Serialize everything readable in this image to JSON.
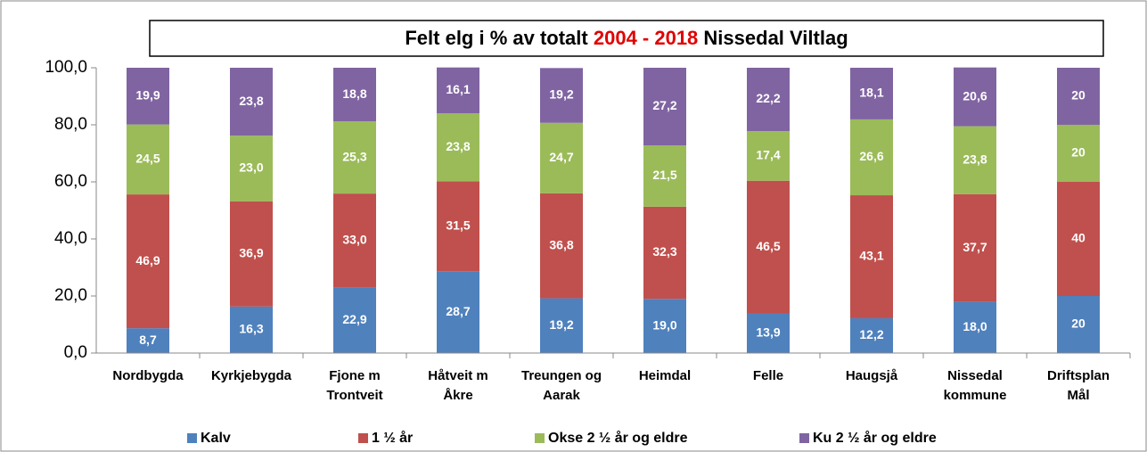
{
  "chart_data": {
    "type": "stacked_bar",
    "title": [
      "Felt elg i % av totalt",
      "2004 - 2018",
      "Nissedal Viltlag"
    ],
    "categories": [
      "Nordbygda",
      "Kyrkjebygda",
      "Fjone m\nTrontveit",
      "Håtveit m\nÅkre",
      "Treungen og\nAarak",
      "Heimdal",
      "Felle",
      "Haugsjå",
      "Nissedal\nkommune",
      "Driftsplan\nMål"
    ],
    "series": [
      {
        "name": "Kalv",
        "color": "#4f81bd",
        "values": [
          8.7,
          16.3,
          22.9,
          28.7,
          19.2,
          19.0,
          13.9,
          12.2,
          18.0,
          20
        ],
        "value_labels": [
          "8,7",
          "16,3",
          "22,9",
          "28,7",
          "19,2",
          "19,0",
          "13,9",
          "12,2",
          "18,0",
          "20"
        ]
      },
      {
        "name": "1 ½ år",
        "color": "#c0504d",
        "values": [
          46.9,
          36.9,
          33.0,
          31.5,
          36.8,
          32.3,
          46.5,
          43.1,
          37.7,
          40
        ],
        "value_labels": [
          "46,9",
          "36,9",
          "33,0",
          "31,5",
          "36,8",
          "32,3",
          "46,5",
          "43,1",
          "37,7",
          "40"
        ]
      },
      {
        "name": "Okse 2 ½ år og eldre",
        "color": "#9bbb59",
        "values": [
          24.5,
          23.0,
          25.3,
          23.8,
          24.7,
          21.5,
          17.4,
          26.6,
          23.8,
          20
        ],
        "value_labels": [
          "24,5",
          "23,0",
          "25,3",
          "23,8",
          "24,7",
          "21,5",
          "17,4",
          "26,6",
          "23,8",
          "20"
        ]
      },
      {
        "name": "Ku 2 ½ år og eldre",
        "color": "#8064a2",
        "values": [
          19.9,
          23.8,
          18.8,
          16.1,
          19.2,
          27.2,
          22.2,
          18.1,
          20.6,
          20
        ],
        "value_labels": [
          "19,9",
          "23,8",
          "18,8",
          "16,1",
          "19,2",
          "27,2",
          "22,2",
          "18,1",
          "20,6",
          "20"
        ]
      }
    ],
    "ylim": [
      0,
      100
    ],
    "yticks": [
      {
        "value": 0,
        "label": "0,0"
      },
      {
        "value": 20,
        "label": "20,0"
      },
      {
        "value": 40,
        "label": "40,0"
      },
      {
        "value": 60,
        "label": "60,0"
      },
      {
        "value": 80,
        "label": "80,0"
      },
      {
        "value": 100,
        "label": "100,0"
      }
    ],
    "grid": false,
    "legend": "bottom"
  }
}
